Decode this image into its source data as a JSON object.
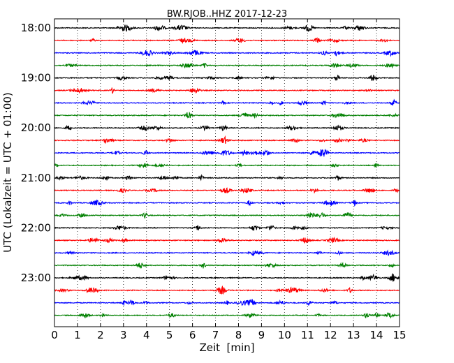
{
  "chart_data": {
    "type": "line",
    "title": "BW.RJOB..HHZ 2017-12-23",
    "xlabel": "Zeit  [min]",
    "ylabel": "UTC (Lokalzeit = UTC + 01:00)",
    "xlim": [
      0,
      15
    ],
    "x_ticks": [
      "0",
      "1",
      "2",
      "3",
      "4",
      "5",
      "6",
      "7",
      "8",
      "9",
      "10",
      "11",
      "12",
      "13",
      "14",
      "15"
    ],
    "y_tick_labels": [
      "18:00",
      "19:00",
      "20:00",
      "21:00",
      "22:00",
      "23:00"
    ],
    "grid": "vertical dotted at each minute",
    "trace_interval_min": 15,
    "start_time": "18:00",
    "trace_count": 24,
    "trace_colors": [
      "#000000",
      "#ff0000",
      "#0000ff",
      "#008000"
    ]
  }
}
